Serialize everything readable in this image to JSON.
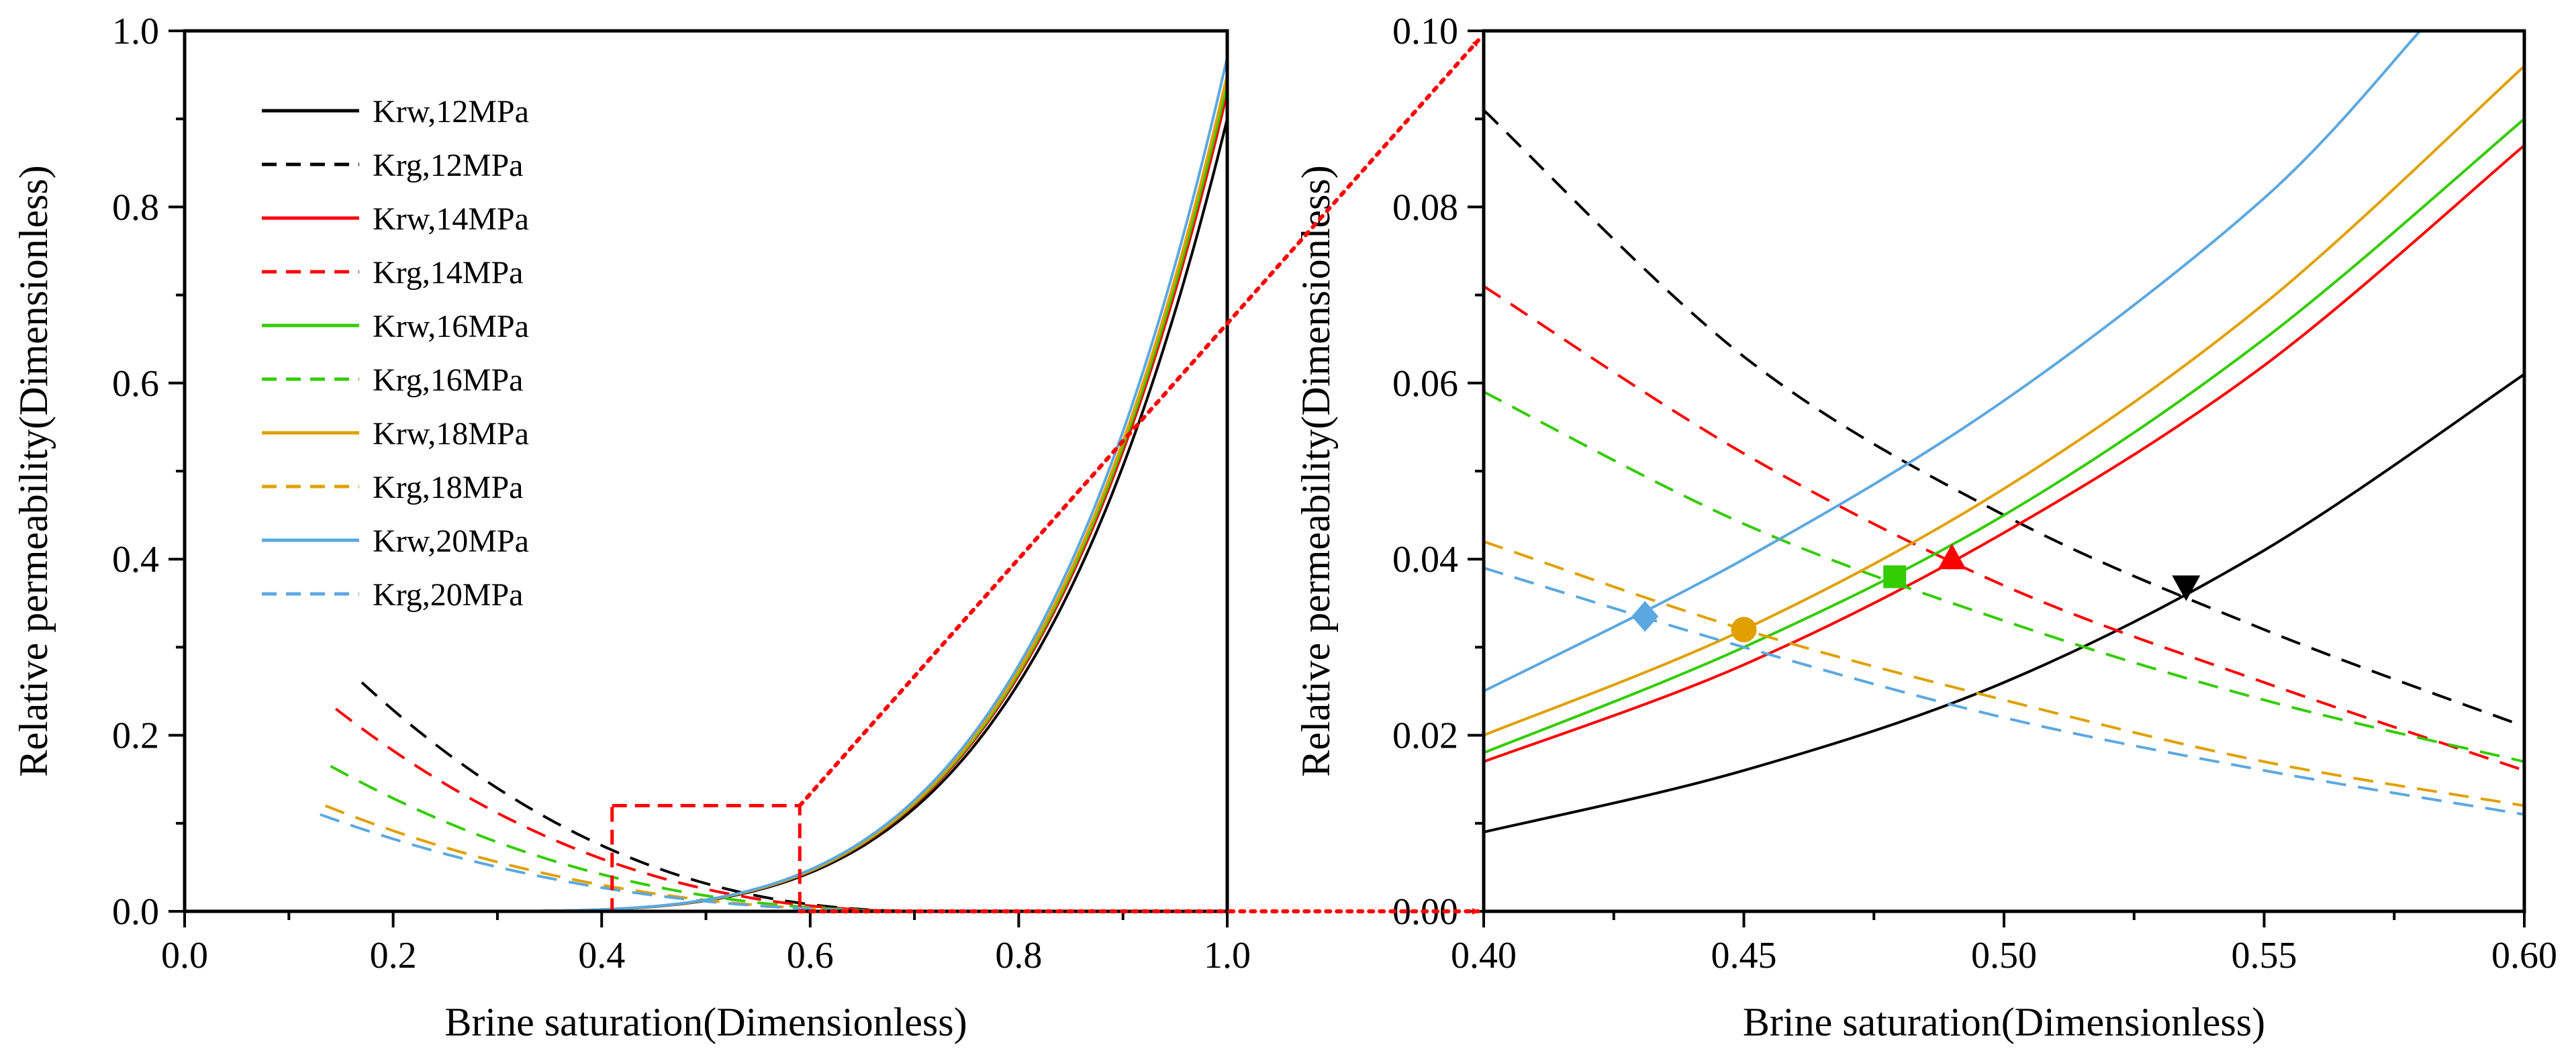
{
  "chart_data": [
    {
      "type": "line",
      "panel": "left",
      "title": "",
      "xlabel": "Brine saturation(Dimensionless)",
      "ylabel": "Relative permeability(Dimensionless)",
      "xlim": [
        0.0,
        1.0
      ],
      "ylim": [
        0.0,
        1.0
      ],
      "xticks": [
        "0.0",
        "0.2",
        "0.4",
        "0.6",
        "0.8",
        "1.0"
      ],
      "yticks": [
        "0.0",
        "0.2",
        "0.4",
        "0.6",
        "0.8",
        "1.0"
      ],
      "grid": false,
      "legend_position": "top-left",
      "series": [
        {
          "name": "Krw,12MPa",
          "kind": "Krw",
          "color": "#000000",
          "dash": "solid",
          "krw_range": [
            0.0,
            0.9
          ],
          "x_range": [
            0.22,
            1.0
          ]
        },
        {
          "name": "Krg,12MPa",
          "kind": "Krg",
          "color": "#000000",
          "dash": "dashed",
          "x_range": [
            0.17,
            0.72
          ],
          "krg_start": 0.26
        },
        {
          "name": "Krw,14MPa",
          "kind": "Krw",
          "color": "#ff0000",
          "dash": "solid",
          "krw_range": [
            0.0,
            0.93
          ],
          "x_range": [
            0.22,
            1.0
          ]
        },
        {
          "name": "Krg,14MPa",
          "kind": "Krg",
          "color": "#ff0000",
          "dash": "dashed",
          "x_range": [
            0.145,
            0.72
          ],
          "krg_start": 0.23
        },
        {
          "name": "Krw,16MPa",
          "kind": "Krw",
          "color": "#33cc00",
          "dash": "solid",
          "krw_range": [
            0.0,
            0.94
          ],
          "x_range": [
            0.22,
            1.0
          ]
        },
        {
          "name": "Krg,16MPa",
          "kind": "Krg",
          "color": "#33cc00",
          "dash": "dashed",
          "x_range": [
            0.14,
            0.72
          ],
          "krg_start": 0.165
        },
        {
          "name": "Krw,18MPa",
          "kind": "Krw",
          "color": "#e0a000",
          "dash": "solid",
          "krw_range": [
            0.0,
            0.95
          ],
          "x_range": [
            0.22,
            1.0
          ]
        },
        {
          "name": "Krg,18MPa",
          "kind": "Krg",
          "color": "#e0a000",
          "dash": "dashed",
          "x_range": [
            0.135,
            0.72
          ],
          "krg_start": 0.12
        },
        {
          "name": "Krw,20MPa",
          "kind": "Krw",
          "color": "#5ba8e0",
          "dash": "solid",
          "krw_range": [
            0.0,
            0.97
          ],
          "x_range": [
            0.22,
            1.0
          ]
        },
        {
          "name": "Krg,20MPa",
          "kind": "Krg",
          "color": "#5ba8e0",
          "dash": "dashed",
          "x_range": [
            0.13,
            0.72
          ],
          "krg_start": 0.11
        }
      ],
      "annotations": [
        {
          "type": "zoom-rectangle",
          "x_range": [
            0.41,
            0.59
          ],
          "y_range": [
            0.0,
            0.12
          ],
          "color": "#ff0000",
          "style": "dashed"
        }
      ]
    },
    {
      "type": "line",
      "panel": "right",
      "title": "",
      "xlabel": "Brine saturation(Dimensionless)",
      "ylabel": "Relative permeability(Dimensionless)",
      "xlim": [
        0.4,
        0.6
      ],
      "ylim": [
        0.0,
        0.1
      ],
      "xticks": [
        "0.40",
        "0.45",
        "0.50",
        "0.55",
        "0.60"
      ],
      "yticks": [
        "0.00",
        "0.02",
        "0.04",
        "0.06",
        "0.08",
        "0.10"
      ],
      "grid": false,
      "series": [
        {
          "name": "Krw,12MPa",
          "color": "#000000",
          "dash": "solid",
          "x": [
            0.4,
            0.45,
            0.5,
            0.55,
            0.6
          ],
          "y": [
            0.009,
            0.016,
            0.026,
            0.041,
            0.061
          ]
        },
        {
          "name": "Krg,12MPa",
          "color": "#000000",
          "dash": "dashed",
          "x": [
            0.4,
            0.45,
            0.5,
            0.55,
            0.6
          ],
          "y": [
            0.091,
            0.063,
            0.045,
            0.032,
            0.021
          ]
        },
        {
          "name": "Krw,14MPa",
          "color": "#ff0000",
          "dash": "solid",
          "x": [
            0.4,
            0.45,
            0.5,
            0.55,
            0.6
          ],
          "y": [
            0.017,
            0.028,
            0.043,
            0.062,
            0.087
          ]
        },
        {
          "name": "Krg,14MPa",
          "color": "#ff0000",
          "dash": "dashed",
          "x": [
            0.4,
            0.45,
            0.5,
            0.55,
            0.6
          ],
          "y": [
            0.071,
            0.052,
            0.037,
            0.026,
            0.016
          ]
        },
        {
          "name": "Krw,16MPa",
          "color": "#33cc00",
          "dash": "solid",
          "x": [
            0.4,
            0.45,
            0.5,
            0.55,
            0.6
          ],
          "y": [
            0.018,
            0.03,
            0.045,
            0.065,
            0.09
          ]
        },
        {
          "name": "Krg,16MPa",
          "color": "#33cc00",
          "dash": "dashed",
          "x": [
            0.4,
            0.45,
            0.5,
            0.55,
            0.6
          ],
          "y": [
            0.059,
            0.044,
            0.033,
            0.024,
            0.017
          ]
        },
        {
          "name": "Krw,18MPa",
          "color": "#e0a000",
          "dash": "solid",
          "x": [
            0.4,
            0.45,
            0.5,
            0.55,
            0.6
          ],
          "y": [
            0.02,
            0.032,
            0.048,
            0.069,
            0.096
          ]
        },
        {
          "name": "Krg,18MPa",
          "color": "#e0a000",
          "dash": "dashed",
          "x": [
            0.4,
            0.45,
            0.5,
            0.55,
            0.6
          ],
          "y": [
            0.042,
            0.032,
            0.024,
            0.017,
            0.012
          ]
        },
        {
          "name": "Krw,20MPa",
          "color": "#5ba8e0",
          "dash": "solid",
          "x": [
            0.4,
            0.45,
            0.5,
            0.55,
            0.58
          ],
          "y": [
            0.025,
            0.04,
            0.058,
            0.081,
            0.1
          ]
        },
        {
          "name": "Krg,20MPa",
          "color": "#5ba8e0",
          "dash": "dashed",
          "x": [
            0.4,
            0.45,
            0.5,
            0.55,
            0.6
          ],
          "y": [
            0.039,
            0.03,
            0.022,
            0.016,
            0.011
          ]
        }
      ],
      "markers": [
        {
          "name": "intersection-12MPa",
          "shape": "triangle-down",
          "color": "#000000",
          "x": 0.535,
          "y": 0.037
        },
        {
          "name": "intersection-14MPa",
          "shape": "triangle-up",
          "color": "#ff0000",
          "x": 0.49,
          "y": 0.04
        },
        {
          "name": "intersection-16MPa",
          "shape": "square",
          "color": "#33cc00",
          "x": 0.479,
          "y": 0.038
        },
        {
          "name": "intersection-18MPa",
          "shape": "circle",
          "color": "#e0a000",
          "x": 0.45,
          "y": 0.032
        },
        {
          "name": "intersection-20MPa",
          "shape": "diamond",
          "color": "#5ba8e0",
          "x": 0.431,
          "y": 0.0335
        }
      ]
    }
  ],
  "zoom_connector_color": "#ff0000"
}
